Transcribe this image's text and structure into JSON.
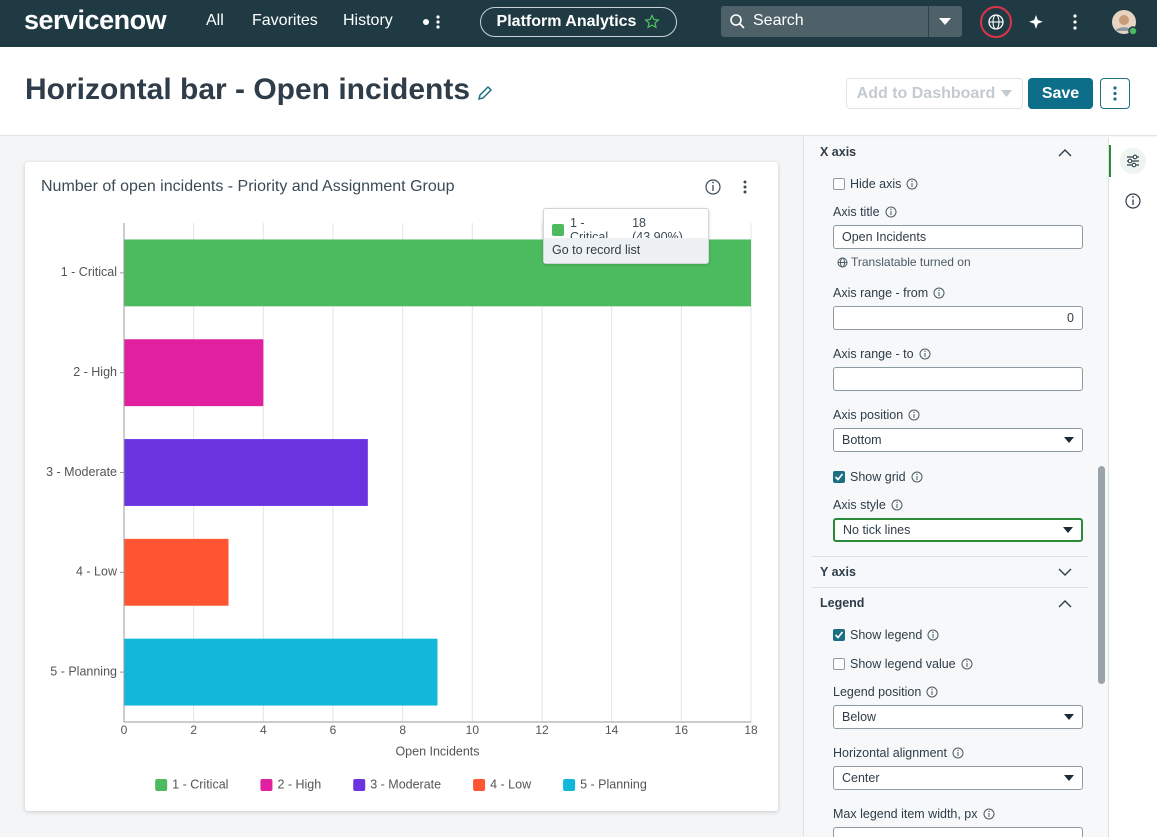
{
  "nav": {
    "logo": "servicenow",
    "links": [
      "All",
      "Favorites",
      "History"
    ],
    "app": "Platform Analytics",
    "search": "Search"
  },
  "header": {
    "title": "Horizontal bar - Open incidents",
    "add_button": "Add to Dashboard",
    "save_button": "Save"
  },
  "chart_data": {
    "type": "hbar",
    "title": "Number of open incidents - Priority and Assignment Group",
    "categories": [
      "1 - Critical",
      "2 - High",
      "3 - Moderate",
      "4 - Low",
      "5 - Planning"
    ],
    "values": [
      18,
      4,
      7,
      3,
      9
    ],
    "colors": [
      "#4cbb5f",
      "#e0209e",
      "#6b34e0",
      "#ff5533",
      "#12b8da"
    ],
    "xlim": [
      0,
      18
    ],
    "xticks": [
      0,
      2,
      4,
      6,
      8,
      10,
      12,
      14,
      16,
      18
    ],
    "xlabel": "Open Incidents",
    "grid": true,
    "legend": "bottom",
    "tooltip": {
      "label": "1 - Critical",
      "value": "18 (43.90%)",
      "action": "Go to record list"
    }
  },
  "panel": {
    "sections": [
      {
        "title": "X axis",
        "expanded": true,
        "items": [
          {
            "kind": "checkbox",
            "label": "Hide axis",
            "checked": false
          },
          {
            "kind": "field",
            "label": "Axis title",
            "input": "text",
            "value": "Open Incidents",
            "note": "Translatable turned on"
          },
          {
            "kind": "field",
            "label": "Axis range - from",
            "input": "number",
            "value": "0"
          },
          {
            "kind": "field",
            "label": "Axis range - to",
            "input": "number"
          },
          {
            "kind": "field",
            "label": "Axis position",
            "input": "select",
            "value": "Bottom"
          },
          {
            "kind": "checkbox",
            "label": "Show grid",
            "checked": true
          },
          {
            "kind": "field",
            "label": "Axis style",
            "input": "select",
            "value": "No tick lines",
            "focused": true
          }
        ]
      },
      {
        "title": "Y axis",
        "expanded": false,
        "items": []
      },
      {
        "title": "Legend",
        "expanded": true,
        "items": [
          {
            "kind": "checkbox",
            "label": "Show legend",
            "checked": true
          },
          {
            "kind": "checkbox",
            "label": "Show legend value",
            "checked": false
          },
          {
            "kind": "field",
            "label": "Legend position",
            "input": "select",
            "value": "Below"
          },
          {
            "kind": "field",
            "label": "Horizontal alignment",
            "input": "select",
            "value": "Center"
          },
          {
            "kind": "field",
            "label": "Max legend item width, px",
            "input": "number"
          }
        ]
      }
    ]
  }
}
